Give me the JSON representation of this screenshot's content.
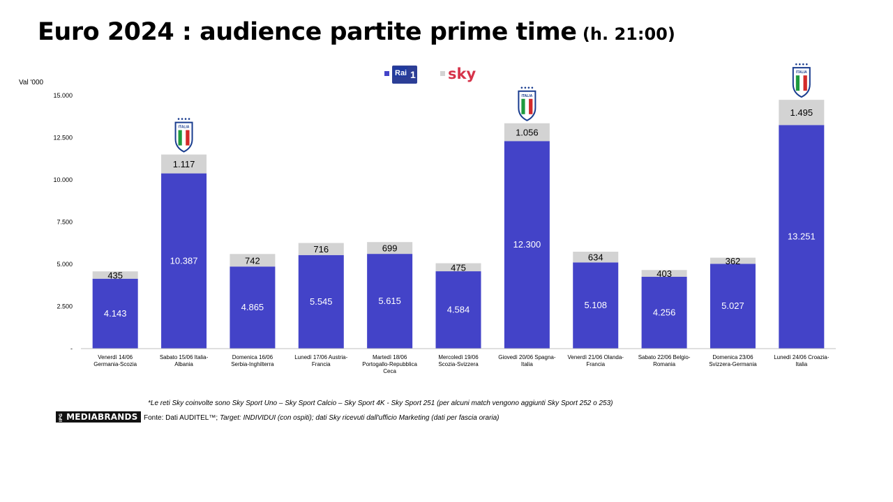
{
  "title": {
    "main": "Euro 2024 : audience partite prime time",
    "sub": "(h. 21:00)"
  },
  "legend": {
    "items": [
      {
        "name": "Rai 1",
        "logo_text": "Rai",
        "logo_num": "1",
        "color": "#4343c8"
      },
      {
        "name": "Sky",
        "logo_text": "sky",
        "color": "#d3d3d3"
      }
    ]
  },
  "italia_badge_text": "ITALIA",
  "chart_data": {
    "type": "bar",
    "stacked": true,
    "ylabel": "Val '000",
    "ylim": [
      0,
      15000
    ],
    "yticks": [
      0,
      2500,
      5000,
      7500,
      10000,
      12500,
      15000
    ],
    "ytick_labels": [
      "-",
      "2.500",
      "5.000",
      "7.500",
      "10.000",
      "12.500",
      "15.000"
    ],
    "categories": [
      [
        "Venerdì 14/06",
        "Germania-Scozia"
      ],
      [
        "Sabato 15/06 Italia-",
        "Albania"
      ],
      [
        "Domenica 16/06",
        "Serbia-Inghilterra"
      ],
      [
        "Lunedì 17/06 Austria-",
        "Francia"
      ],
      [
        "Martedì 18/06",
        "Portogallo-Repubblica",
        "Ceca"
      ],
      [
        "Mercoledì 19/06",
        "Scozia-Svizzera"
      ],
      [
        "Giovedì 20/06 Spagna-",
        "Italia"
      ],
      [
        "Venerdì 21/06 Olanda-",
        "Francia"
      ],
      [
        "Sabato 22/06 Belgio-",
        "Romania"
      ],
      [
        "Domenica 23/06",
        "Svizzera-Germania"
      ],
      [
        "Lunedì 24/06 Croazia-",
        "Italia"
      ]
    ],
    "series": [
      {
        "name": "Rai 1",
        "color": "#4343c8",
        "values": [
          4143,
          10387,
          4865,
          5545,
          5615,
          4584,
          12300,
          5108,
          4256,
          5027,
          13251
        ],
        "labels": [
          "4.143",
          "10.387",
          "4.865",
          "5.545",
          "5.615",
          "4.584",
          "12.300",
          "5.108",
          "4.256",
          "5.027",
          "13.251"
        ]
      },
      {
        "name": "Sky",
        "color": "#d3d3d3",
        "values": [
          435,
          1117,
          742,
          716,
          699,
          475,
          1056,
          634,
          403,
          362,
          1495
        ],
        "labels": [
          "435",
          "1.117",
          "742",
          "716",
          "699",
          "475",
          "1.056",
          "634",
          "403",
          "362",
          "1.495"
        ]
      }
    ],
    "italy_matches": [
      1,
      6,
      10
    ]
  },
  "footnote": "*Le reti Sky coinvolte sono Sky Sport Uno – Sky Sport Calcio – Sky Sport 4K - Sky Sport 251  (per alcuni match vengono aggiunti Sky Sport 252 o 253)",
  "brand_logo": {
    "prefix": "IPG",
    "name": "MEDIABRANDS"
  },
  "source": {
    "prefix": "Fonte: Dati AUDITEL™; ",
    "text": "Target: INDIVIDUI (con ospiti); dati Sky ricevuti dall'ufficio Marketing (dati per fascia oraria)"
  }
}
